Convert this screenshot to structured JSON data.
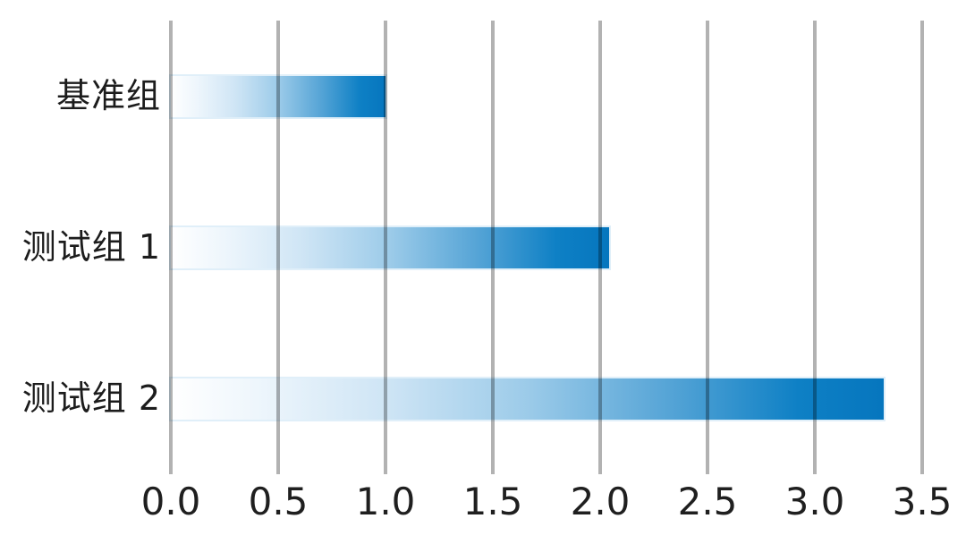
{
  "chart_data": {
    "type": "bar",
    "orientation": "horizontal",
    "title": "",
    "xlabel": "",
    "ylabel": "",
    "categories": [
      "基准组",
      "测试组 1",
      "测试组 2"
    ],
    "values": [
      1.0,
      2.04,
      3.32
    ],
    "xlim": [
      0,
      3.5
    ],
    "xticks": [
      0,
      0.5,
      1,
      1.5,
      2,
      2.5,
      3,
      3.5
    ],
    "xtick_labels": [
      "0.0",
      "0.5",
      "1.0",
      "1.5",
      "2.0",
      "2.5",
      "3.0",
      "3.5"
    ],
    "grid": "vertical-on",
    "legend": "none",
    "colors": {
      "bar_gradient_start": "#ffffff",
      "bar_gradient_mid": "#9ccbe9",
      "bar_gradient_end": "#0676be",
      "gridline": "#b1b1b1",
      "text": "#1c1c1c",
      "background": "#ffffff"
    }
  }
}
